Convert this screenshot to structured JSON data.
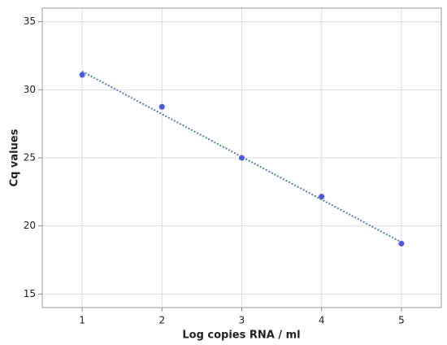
{
  "chart_data": {
    "type": "scatter",
    "x_label": "Log copies RNA / ml",
    "y_label": "Cq values",
    "x": [
      1,
      2,
      3,
      4,
      5
    ],
    "values": [
      31.1,
      28.75,
      25.0,
      22.15,
      18.7
    ],
    "color": "#4c58e6",
    "trendline": {
      "x": [
        1,
        5
      ],
      "values": [
        31.35,
        18.8
      ],
      "color": "#4a7fb8",
      "style": "dotted"
    },
    "xlim": [
      0.5,
      5.5
    ],
    "xticks": [
      1,
      2,
      3,
      4,
      5
    ],
    "ylim": [
      14,
      36
    ],
    "yticks": [
      15,
      20,
      25,
      30,
      35
    ],
    "grid": true
  }
}
